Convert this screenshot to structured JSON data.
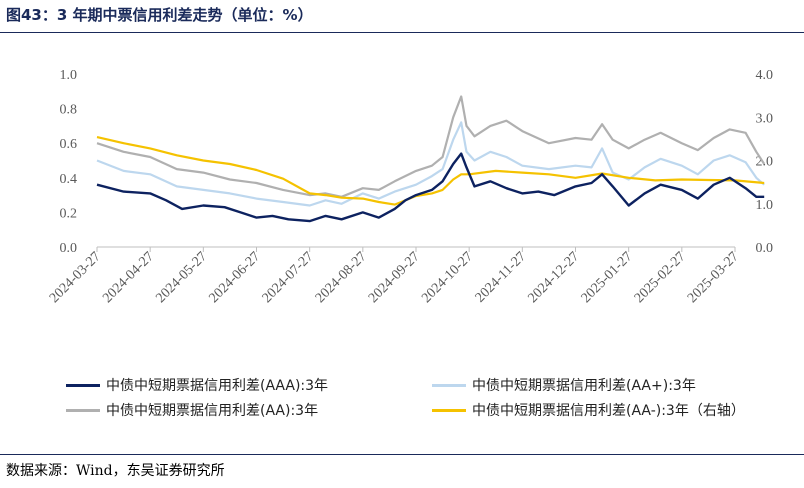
{
  "title": "图43：3 年期中票信用利差走势（单位：%）",
  "source": "数据来源：Wind，东吴证券研究所",
  "colors": {
    "aaa": "#0d2260",
    "aa_plus": "#bdd7ee",
    "aa": "#b0b0b0",
    "aa_minus": "#f5c200",
    "axis": "#bfbfbf",
    "title": "#1a2a5a"
  },
  "chart_data": {
    "type": "line",
    "x_ticks": [
      "2024-03-27",
      "2024-04-27",
      "2024-05-27",
      "2024-06-27",
      "2024-07-27",
      "2024-08-27",
      "2024-09-27",
      "2024-10-27",
      "2024-11-27",
      "2024-12-27",
      "2025-01-27",
      "2025-02-27",
      "2025-03-27"
    ],
    "y_left": {
      "ticks": [
        "0.0",
        "0.2",
        "0.4",
        "0.6",
        "0.8",
        "1.0"
      ],
      "lim": [
        0,
        1.0
      ]
    },
    "y_right": {
      "ticks": [
        "0.0",
        "1.0",
        "2.0",
        "3.0",
        "4.0"
      ],
      "lim": [
        0,
        4.0
      ]
    },
    "legend_position": "bottom",
    "series": [
      {
        "name": "中债中短期票据信用利差(AAA):3年",
        "key": "aaa",
        "axis": "left",
        "points": [
          [
            0,
            0.36
          ],
          [
            0.5,
            0.32
          ],
          [
            1,
            0.31
          ],
          [
            1.3,
            0.27
          ],
          [
            1.6,
            0.22
          ],
          [
            2,
            0.24
          ],
          [
            2.4,
            0.23
          ],
          [
            2.7,
            0.2
          ],
          [
            3,
            0.17
          ],
          [
            3.3,
            0.18
          ],
          [
            3.6,
            0.16
          ],
          [
            4,
            0.15
          ],
          [
            4.3,
            0.18
          ],
          [
            4.6,
            0.16
          ],
          [
            5,
            0.2
          ],
          [
            5.3,
            0.17
          ],
          [
            5.6,
            0.22
          ],
          [
            5.8,
            0.27
          ],
          [
            6,
            0.3
          ],
          [
            6.3,
            0.33
          ],
          [
            6.5,
            0.38
          ],
          [
            6.7,
            0.48
          ],
          [
            6.85,
            0.54
          ],
          [
            6.95,
            0.46
          ],
          [
            7.1,
            0.35
          ],
          [
            7.4,
            0.38
          ],
          [
            7.7,
            0.34
          ],
          [
            8,
            0.31
          ],
          [
            8.3,
            0.32
          ],
          [
            8.6,
            0.3
          ],
          [
            9,
            0.35
          ],
          [
            9.3,
            0.37
          ],
          [
            9.5,
            0.42
          ],
          [
            9.7,
            0.35
          ],
          [
            10,
            0.24
          ],
          [
            10.3,
            0.31
          ],
          [
            10.6,
            0.36
          ],
          [
            11,
            0.33
          ],
          [
            11.3,
            0.28
          ],
          [
            11.6,
            0.36
          ],
          [
            11.9,
            0.4
          ],
          [
            12.2,
            0.34
          ],
          [
            12.4,
            0.29
          ],
          [
            12.55,
            0.29
          ]
        ]
      },
      {
        "name": "中债中短期票据信用利差(AA+):3年",
        "key": "aa_plus",
        "axis": "left",
        "points": [
          [
            0,
            0.5
          ],
          [
            0.5,
            0.44
          ],
          [
            1,
            0.42
          ],
          [
            1.5,
            0.35
          ],
          [
            2,
            0.33
          ],
          [
            2.5,
            0.31
          ],
          [
            3,
            0.28
          ],
          [
            3.5,
            0.26
          ],
          [
            4,
            0.24
          ],
          [
            4.3,
            0.27
          ],
          [
            4.6,
            0.25
          ],
          [
            5,
            0.31
          ],
          [
            5.3,
            0.28
          ],
          [
            5.6,
            0.32
          ],
          [
            6,
            0.36
          ],
          [
            6.3,
            0.41
          ],
          [
            6.5,
            0.45
          ],
          [
            6.7,
            0.62
          ],
          [
            6.85,
            0.72
          ],
          [
            6.95,
            0.55
          ],
          [
            7.1,
            0.5
          ],
          [
            7.4,
            0.55
          ],
          [
            7.7,
            0.52
          ],
          [
            8,
            0.47
          ],
          [
            8.5,
            0.45
          ],
          [
            9,
            0.47
          ],
          [
            9.3,
            0.46
          ],
          [
            9.5,
            0.57
          ],
          [
            9.7,
            0.43
          ],
          [
            10,
            0.39
          ],
          [
            10.3,
            0.46
          ],
          [
            10.6,
            0.51
          ],
          [
            11,
            0.47
          ],
          [
            11.3,
            0.42
          ],
          [
            11.6,
            0.5
          ],
          [
            11.9,
            0.53
          ],
          [
            12.2,
            0.49
          ],
          [
            12.4,
            0.4
          ],
          [
            12.55,
            0.36
          ]
        ]
      },
      {
        "name": "中债中短期票据信用利差(AA):3年",
        "key": "aa",
        "axis": "left",
        "points": [
          [
            0,
            0.6
          ],
          [
            0.5,
            0.55
          ],
          [
            1,
            0.52
          ],
          [
            1.5,
            0.45
          ],
          [
            2,
            0.43
          ],
          [
            2.5,
            0.39
          ],
          [
            3,
            0.37
          ],
          [
            3.5,
            0.33
          ],
          [
            4,
            0.3
          ],
          [
            4.3,
            0.31
          ],
          [
            4.6,
            0.29
          ],
          [
            5,
            0.34
          ],
          [
            5.3,
            0.33
          ],
          [
            5.6,
            0.38
          ],
          [
            6,
            0.44
          ],
          [
            6.3,
            0.47
          ],
          [
            6.5,
            0.52
          ],
          [
            6.7,
            0.75
          ],
          [
            6.85,
            0.87
          ],
          [
            6.95,
            0.7
          ],
          [
            7.1,
            0.64
          ],
          [
            7.4,
            0.7
          ],
          [
            7.7,
            0.73
          ],
          [
            8,
            0.67
          ],
          [
            8.5,
            0.6
          ],
          [
            9,
            0.63
          ],
          [
            9.3,
            0.62
          ],
          [
            9.5,
            0.71
          ],
          [
            9.7,
            0.62
          ],
          [
            10,
            0.57
          ],
          [
            10.3,
            0.62
          ],
          [
            10.6,
            0.66
          ],
          [
            11,
            0.6
          ],
          [
            11.3,
            0.56
          ],
          [
            11.6,
            0.63
          ],
          [
            11.9,
            0.68
          ],
          [
            12.2,
            0.66
          ],
          [
            12.4,
            0.55
          ],
          [
            12.55,
            0.48
          ]
        ]
      },
      {
        "name": "中债中短期票据信用利差(AA-):3年（右轴）",
        "key": "aa_minus",
        "axis": "right",
        "points": [
          [
            0,
            2.54
          ],
          [
            0.5,
            2.4
          ],
          [
            1,
            2.28
          ],
          [
            1.5,
            2.12
          ],
          [
            2,
            2.0
          ],
          [
            2.5,
            1.92
          ],
          [
            3,
            1.78
          ],
          [
            3.5,
            1.58
          ],
          [
            4,
            1.24
          ],
          [
            4.3,
            1.2
          ],
          [
            4.6,
            1.14
          ],
          [
            5,
            1.12
          ],
          [
            5.3,
            1.04
          ],
          [
            5.6,
            0.98
          ],
          [
            6,
            1.18
          ],
          [
            6.3,
            1.24
          ],
          [
            6.5,
            1.32
          ],
          [
            6.7,
            1.56
          ],
          [
            6.85,
            1.68
          ],
          [
            7,
            1.68
          ],
          [
            7.5,
            1.76
          ],
          [
            8,
            1.72
          ],
          [
            8.5,
            1.68
          ],
          [
            9,
            1.6
          ],
          [
            9.5,
            1.7
          ],
          [
            10,
            1.6
          ],
          [
            10.5,
            1.54
          ],
          [
            11,
            1.56
          ],
          [
            11.5,
            1.55
          ],
          [
            12,
            1.54
          ],
          [
            12.55,
            1.48
          ]
        ]
      }
    ]
  }
}
